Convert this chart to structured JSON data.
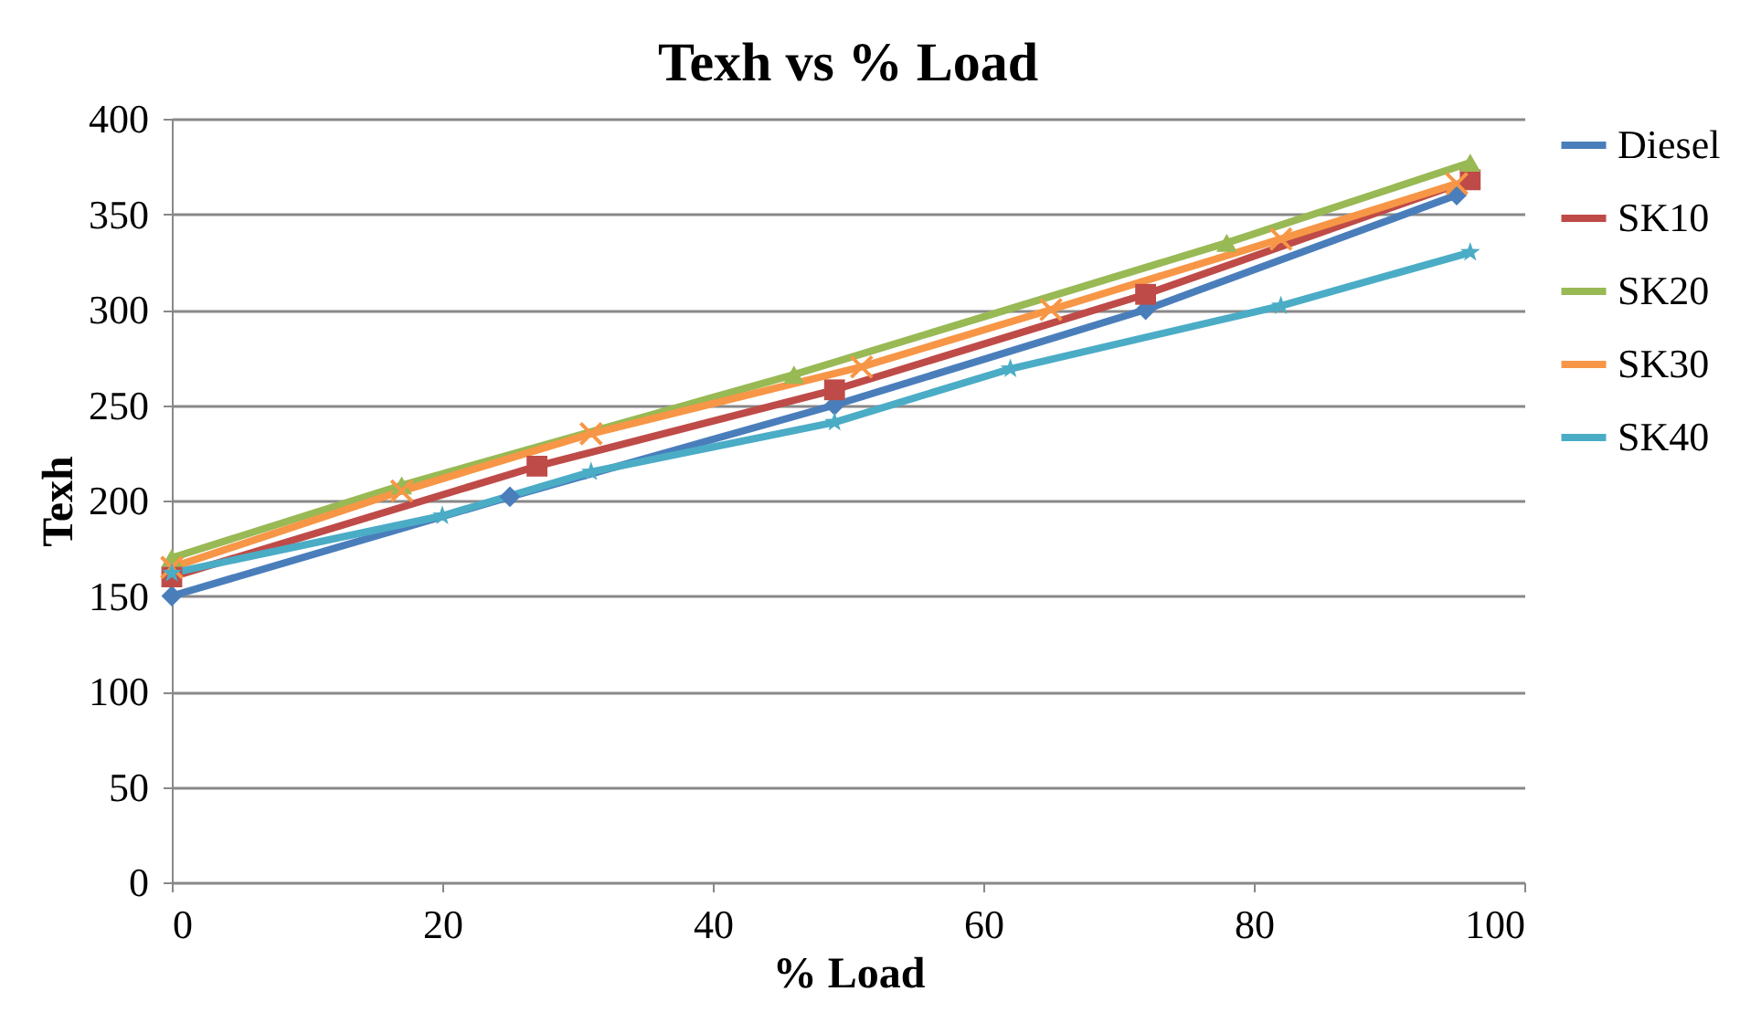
{
  "chart_data": {
    "type": "line",
    "title": "Texh vs % Load",
    "xlabel": "% Load",
    "ylabel": "Texh",
    "xlim": [
      0,
      100
    ],
    "xticks": [
      0,
      20,
      40,
      60,
      80,
      100
    ],
    "ylim": [
      0,
      400
    ],
    "yticks": [
      0,
      50,
      100,
      150,
      200,
      250,
      300,
      350,
      400
    ],
    "grid": "y",
    "legend": "right",
    "series": [
      {
        "name": "Diesel",
        "color": "#4a7ebb",
        "marker": "diamond",
        "x": [
          0,
          25,
          49,
          72,
          95
        ],
        "values": [
          150,
          202,
          250,
          300,
          360
        ]
      },
      {
        "name": "SK10",
        "color": "#be4b48",
        "marker": "square",
        "x": [
          0,
          27,
          49,
          72,
          96
        ],
        "values": [
          160,
          218,
          258,
          308,
          368
        ]
      },
      {
        "name": "SK20",
        "color": "#98b954",
        "marker": "triangle",
        "x": [
          0,
          17,
          46,
          78,
          96
        ],
        "values": [
          170,
          208,
          266,
          335,
          377
        ]
      },
      {
        "name": "SK30",
        "color": "#f79646",
        "marker": "cross",
        "x": [
          0,
          17,
          31,
          51,
          65,
          82,
          95
        ],
        "values": [
          165,
          205,
          235,
          270,
          300,
          337,
          366
        ]
      },
      {
        "name": "SK40",
        "color": "#4bacc6",
        "marker": "star",
        "x": [
          0,
          20,
          31,
          49,
          62,
          82,
          96
        ],
        "values": [
          162,
          192,
          215,
          241,
          269,
          302,
          330
        ]
      }
    ]
  }
}
